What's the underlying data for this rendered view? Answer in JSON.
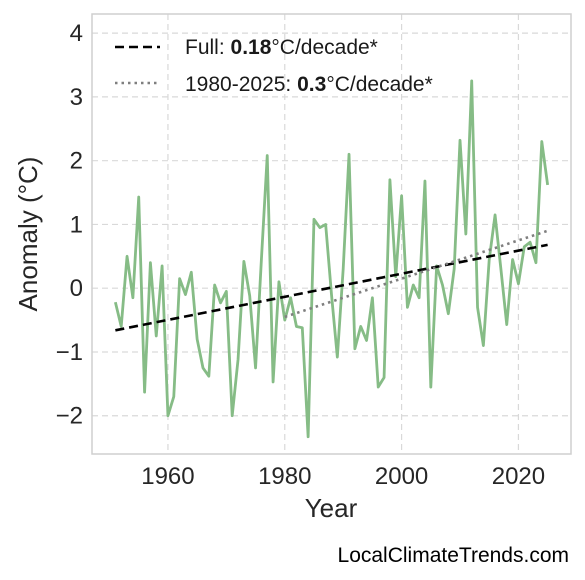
{
  "chart_data": {
    "type": "line",
    "xlabel": "Year",
    "ylabel": "Anomaly (°C)",
    "xlim": [
      1947,
      2029
    ],
    "ylim": [
      -2.6,
      4.3
    ],
    "x_ticks": [
      1960,
      1980,
      2000,
      2020
    ],
    "y_ticks": [
      -2,
      -1,
      0,
      1,
      2,
      3,
      4
    ],
    "y_tick_labels": [
      "−2",
      "−1",
      "0",
      "1",
      "2",
      "3",
      "4"
    ],
    "grid": true,
    "legend_position": "top-left",
    "series": [
      {
        "color": "#86bc86",
        "style": "solid",
        "x": [
          1951,
          1952,
          1953,
          1954,
          1955,
          1956,
          1957,
          1958,
          1959,
          1960,
          1961,
          1962,
          1963,
          1964,
          1965,
          1966,
          1967,
          1968,
          1969,
          1970,
          1971,
          1972,
          1973,
          1974,
          1975,
          1976,
          1977,
          1978,
          1979,
          1980,
          1981,
          1982,
          1983,
          1984,
          1985,
          1986,
          1987,
          1988,
          1989,
          1990,
          1991,
          1992,
          1993,
          1994,
          1995,
          1996,
          1997,
          1998,
          1999,
          2000,
          2001,
          2002,
          2003,
          2004,
          2005,
          2006,
          2007,
          2008,
          2009,
          2010,
          2011,
          2012,
          2013,
          2014,
          2015,
          2016,
          2017,
          2018,
          2019,
          2020,
          2021,
          2022,
          2023,
          2024,
          2025
        ],
        "y": [
          -0.22,
          -0.6,
          0.5,
          -0.15,
          1.43,
          -1.63,
          0.4,
          -0.75,
          0.35,
          -2.0,
          -1.7,
          0.15,
          -0.1,
          0.25,
          -0.8,
          -1.25,
          -1.38,
          0.05,
          -0.23,
          -0.05,
          -2.0,
          -1.12,
          0.42,
          -0.12,
          -1.25,
          0.45,
          2.08,
          -1.47,
          0.1,
          -0.5,
          -0.15,
          -0.6,
          -0.62,
          -2.33,
          1.08,
          0.95,
          1.0,
          -0.1,
          -1.08,
          0.3,
          2.1,
          -0.95,
          -0.6,
          -0.82,
          -0.15,
          -1.55,
          -1.4,
          1.7,
          0.18,
          1.45,
          -0.3,
          0.05,
          -0.15,
          1.68,
          -1.55,
          0.35,
          0.05,
          -0.4,
          0.3,
          2.32,
          0.85,
          3.25,
          -0.3,
          -0.9,
          0.45,
          1.15,
          0.3,
          -0.57,
          0.45,
          0.07,
          0.65,
          0.72,
          0.4,
          2.3,
          1.62
        ]
      },
      {
        "name_prefix": "Full: ",
        "name_value": "0.18",
        "name_suffix": "°C/decade*",
        "color": "#000000",
        "style": "dashed",
        "x": [
          1951,
          2025
        ],
        "y": [
          -0.66,
          0.68
        ]
      },
      {
        "name_prefix": "1980-2025: ",
        "name_value": "0.3",
        "name_suffix": "°C/decade*",
        "color": "#7f7f7f",
        "style": "dotted",
        "x": [
          1980,
          2025
        ],
        "y": [
          -0.45,
          0.9
        ]
      }
    ]
  },
  "credit": "LocalClimateTrends.com"
}
